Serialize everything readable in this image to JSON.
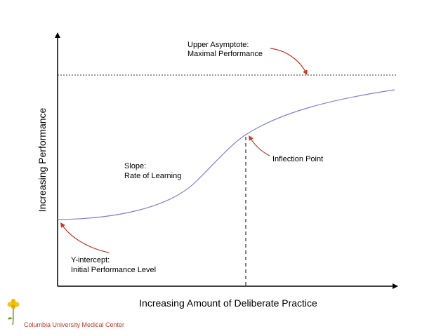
{
  "diagram": {
    "x_axis_label": "Increasing Amount of Deliberate Practice",
    "y_axis_label": "Increasing Performance",
    "annotations": {
      "upper_asymptote_line1": "Upper Asymptote:",
      "upper_asymptote_line2": "Maximal Performance",
      "inflection_point": "Inflection Point",
      "slope_line1": "Slope:",
      "slope_line2": "Rate of Learning",
      "y_intercept_line1": "Y-intercept:",
      "y_intercept_line2": "Initial Performance Level"
    },
    "colors": {
      "curve": "#7b7fd6",
      "arrow": "#c0392b",
      "axis": "#000000"
    }
  },
  "footer": {
    "institution": "Columbia University Medical Center",
    "logo_icon": "flower-logo-icon"
  }
}
